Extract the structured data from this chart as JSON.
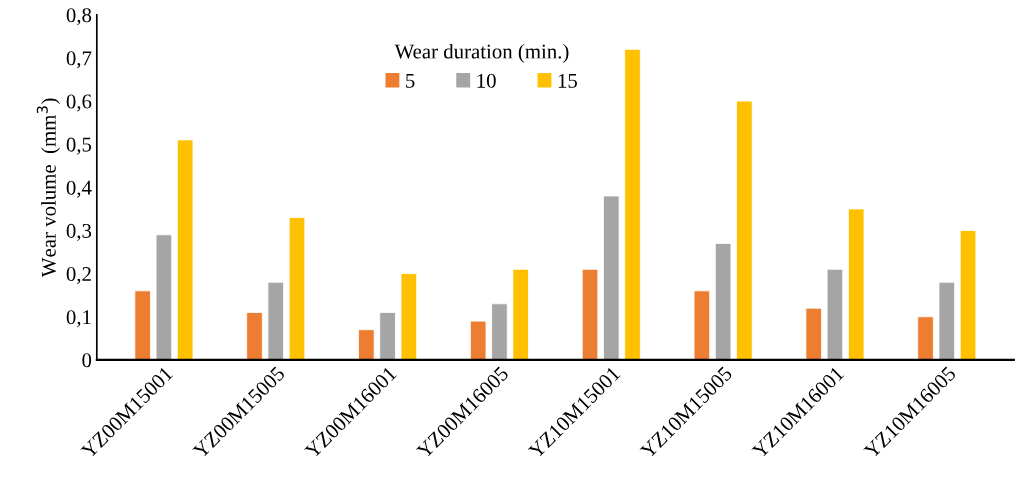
{
  "chart_data": {
    "type": "bar",
    "ylabel": "Wear volume  (mm$^{3}$)",
    "legend_title": "Wear duration (min.)",
    "legend": "top",
    "categories": [
      "YZ00M15001",
      "YZ00M15005",
      "YZ00M16001",
      "YZ00M16005",
      "YZ10M15001",
      "YZ10M15005",
      "YZ10M16001",
      "YZ10M16005"
    ],
    "series": [
      {
        "name": "5",
        "color": "#ed7d31",
        "values": [
          0.16,
          0.11,
          0.07,
          0.09,
          0.21,
          0.16,
          0.12,
          0.1
        ]
      },
      {
        "name": "10",
        "color": "#a5a5a5",
        "values": [
          0.29,
          0.18,
          0.11,
          0.13,
          0.38,
          0.27,
          0.21,
          0.18
        ]
      },
      {
        "name": "15",
        "color": "#ffc000",
        "values": [
          0.51,
          0.33,
          0.2,
          0.21,
          0.72,
          0.6,
          0.35,
          0.3
        ]
      }
    ],
    "ylim": [
      0,
      0.8
    ],
    "yticks": [
      0,
      {
        "value": 0.1,
        "label": "0,1"
      },
      {
        "value": 0.2,
        "label": "0,2"
      },
      {
        "value": 0.3,
        "label": "0,3"
      },
      {
        "value": 0.4,
        "label": "0,4"
      },
      {
        "value": 0.5,
        "label": "0,5"
      },
      {
        "value": 0.6,
        "label": "0,6"
      },
      {
        "value": 0.7,
        "label": "0,7"
      },
      {
        "value": 0.8,
        "label": "0,8"
      }
    ],
    "grid": false
  }
}
